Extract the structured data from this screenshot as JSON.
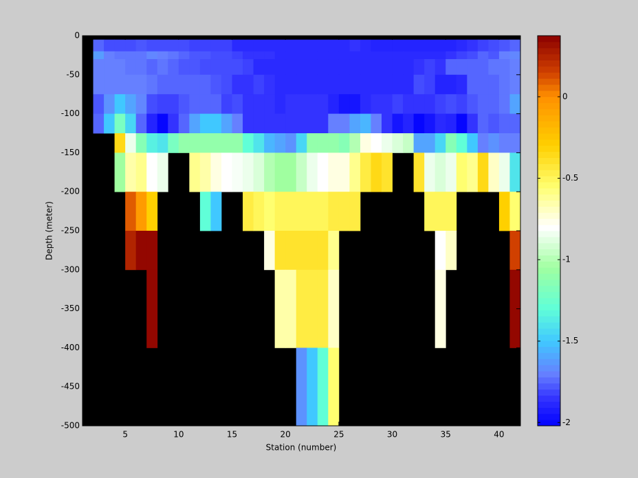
{
  "chart_data": {
    "type": "heatmap",
    "xlabel": "Station (number)",
    "ylabel": "Depth (meter)",
    "xbins": [
      2,
      3,
      4,
      5,
      6,
      7,
      8,
      9,
      10,
      11,
      12,
      13,
      14,
      15,
      16,
      17,
      18,
      19,
      20,
      21,
      22,
      23,
      24,
      25,
      26,
      27,
      28,
      29,
      30,
      31,
      32,
      33,
      34,
      35,
      36,
      37,
      38,
      39,
      40,
      41,
      42
    ],
    "ybins": [
      -5,
      -20,
      -30,
      -50,
      -75,
      -100,
      -125,
      -150,
      -200,
      -250,
      -300,
      -400,
      -500
    ],
    "z": [
      [
        -1.75,
        -1.8,
        -1.8,
        -1.8,
        -1.78,
        -1.8,
        -1.8,
        -1.8,
        -1.8,
        -1.82,
        -1.82,
        -1.82,
        -1.82,
        -1.88,
        -1.88,
        -1.88,
        -1.88,
        -1.88,
        -1.88,
        -1.88,
        -1.88,
        -1.88,
        -1.88,
        -1.88,
        -1.85,
        -1.88,
        -1.9,
        -1.9,
        -1.9,
        -1.9,
        -1.9,
        -1.9,
        -1.9,
        -1.9,
        -1.88,
        -1.85,
        -1.82,
        -1.8,
        -1.78,
        -1.75
      ],
      [
        -1.62,
        -1.7,
        -1.72,
        -1.72,
        -1.72,
        -1.68,
        -1.7,
        -1.72,
        -1.75,
        -1.78,
        -1.78,
        -1.8,
        -1.8,
        -1.82,
        -1.85,
        -1.85,
        -1.85,
        -1.88,
        -1.88,
        -1.88,
        -1.88,
        -1.88,
        -1.88,
        -1.88,
        -1.88,
        -1.88,
        -1.88,
        -1.88,
        -1.88,
        -1.88,
        -1.88,
        -1.88,
        -1.88,
        -1.85,
        -1.82,
        -1.8,
        -1.75,
        -1.78,
        -1.7,
        -1.68
      ],
      [
        -1.7,
        -1.7,
        -1.7,
        -1.72,
        -1.72,
        -1.75,
        -1.72,
        -1.75,
        -1.78,
        -1.78,
        -1.8,
        -1.8,
        -1.8,
        -1.8,
        -1.82,
        -1.88,
        -1.88,
        -1.88,
        -1.88,
        -1.88,
        -1.88,
        -1.88,
        -1.88,
        -1.88,
        -1.88,
        -1.88,
        -1.88,
        -1.88,
        -1.88,
        -1.88,
        -1.85,
        -1.82,
        -1.85,
        -1.75,
        -1.75,
        -1.75,
        -1.75,
        -1.72,
        -1.72,
        -1.7
      ],
      [
        -1.7,
        -1.7,
        -1.7,
        -1.7,
        -1.7,
        -1.72,
        -1.75,
        -1.75,
        -1.75,
        -1.75,
        -1.75,
        -1.78,
        -1.8,
        -1.85,
        -1.85,
        -1.82,
        -1.85,
        -1.88,
        -1.88,
        -1.88,
        -1.88,
        -1.88,
        -1.88,
        -1.88,
        -1.88,
        -1.88,
        -1.88,
        -1.88,
        -1.88,
        -1.88,
        -1.8,
        -1.82,
        -1.9,
        -1.9,
        -1.88,
        -1.75,
        -1.75,
        -1.75,
        -1.72,
        -1.7
      ],
      [
        -1.78,
        -1.65,
        -1.5,
        -1.6,
        -1.68,
        -1.8,
        -1.82,
        -1.82,
        -1.78,
        -1.75,
        -1.75,
        -1.75,
        -1.82,
        -1.8,
        -1.85,
        -1.85,
        -1.85,
        -1.88,
        -1.85,
        -1.85,
        -1.85,
        -1.85,
        -1.9,
        -1.95,
        -1.95,
        -1.88,
        -1.85,
        -1.85,
        -1.82,
        -1.85,
        -1.85,
        -1.85,
        -1.82,
        -1.8,
        -1.82,
        -1.78,
        -1.75,
        -1.75,
        -1.72,
        -1.6
      ],
      [
        -1.75,
        -1.5,
        -1.2,
        -1.45,
        -1.75,
        -1.9,
        -2,
        -1.85,
        -1.75,
        -1.6,
        -1.5,
        -1.5,
        -1.6,
        -1.7,
        -1.85,
        -1.85,
        -1.85,
        -1.85,
        -1.85,
        -1.85,
        -1.85,
        -1.85,
        -1.7,
        -1.7,
        -1.6,
        -1.55,
        -1.7,
        -1.85,
        -1.95,
        -1.9,
        -2,
        -1.95,
        -1.88,
        -1.9,
        -2,
        -1.85,
        -1.75,
        -1.78,
        -1.75,
        -1.75
      ],
      [
        null,
        null,
        -0.35,
        -0.85,
        -1.15,
        -1.35,
        -1.4,
        -1.2,
        -1.1,
        -1.1,
        -1.1,
        -1.1,
        -1.1,
        -1.1,
        -1.3,
        -1.4,
        -1.55,
        -1.6,
        -1.65,
        -1.45,
        -1.1,
        -1.1,
        -1.1,
        -1.15,
        -1.0,
        -0.75,
        -0.8,
        -0.85,
        -0.9,
        -0.95,
        -1.6,
        -1.6,
        -1.45,
        -1.15,
        -1.3,
        -1.5,
        -1.7,
        -1.65,
        -1.7,
        -1.7
      ],
      [
        null,
        null,
        -1.05,
        -0.65,
        -0.6,
        -0.8,
        -0.85,
        null,
        null,
        -0.6,
        -0.65,
        -0.75,
        -0.8,
        -0.82,
        -0.85,
        -0.9,
        -1.0,
        -1.05,
        -1.05,
        -0.95,
        -0.85,
        -0.8,
        -0.75,
        -0.75,
        -0.6,
        -0.45,
        -0.35,
        -0.4,
        null,
        null,
        -0.4,
        -0.85,
        -0.9,
        -0.85,
        -0.55,
        -0.6,
        -0.35,
        -0.7,
        -0.85,
        -1.4
      ],
      [
        null,
        null,
        null,
        0.1,
        -0.05,
        -0.3,
        null,
        null,
        null,
        null,
        -1.3,
        -1.5,
        null,
        null,
        -0.45,
        -0.5,
        -0.55,
        -0.5,
        -0.5,
        -0.5,
        -0.5,
        -0.5,
        -0.45,
        -0.45,
        -0.45,
        null,
        null,
        null,
        null,
        null,
        null,
        -0.5,
        -0.5,
        -0.5,
        null,
        null,
        null,
        null,
        -0.3,
        -0.55
      ],
      [
        null,
        null,
        null,
        0.25,
        0.35,
        0.35,
        null,
        null,
        null,
        null,
        null,
        null,
        null,
        null,
        null,
        null,
        -0.75,
        -0.4,
        -0.4,
        -0.4,
        -0.4,
        -0.4,
        -0.6,
        null,
        null,
        null,
        null,
        null,
        null,
        null,
        null,
        null,
        -0.8,
        -0.7,
        null,
        null,
        null,
        null,
        null,
        0.15
      ],
      [
        null,
        null,
        null,
        null,
        null,
        0.35,
        null,
        null,
        null,
        null,
        null,
        null,
        null,
        null,
        null,
        null,
        null,
        -0.65,
        -0.65,
        -0.45,
        -0.45,
        -0.45,
        -0.7,
        null,
        null,
        null,
        null,
        null,
        null,
        null,
        null,
        null,
        -0.75,
        null,
        null,
        null,
        null,
        null,
        null,
        0.35
      ],
      [
        null,
        null,
        null,
        null,
        null,
        null,
        null,
        null,
        null,
        null,
        null,
        null,
        null,
        null,
        null,
        null,
        null,
        null,
        null,
        -1.65,
        -1.5,
        -1.3,
        -0.55,
        null,
        null,
        null,
        null,
        null,
        null,
        null,
        null,
        null,
        null,
        null,
        null,
        null,
        null,
        null,
        null,
        null
      ]
    ],
    "xlim": [
      1,
      42
    ],
    "ylim": [
      -500,
      0
    ],
    "xticks": [
      5,
      10,
      15,
      20,
      25,
      30,
      35,
      40
    ],
    "yticks": [
      0,
      -50,
      -100,
      -150,
      -200,
      -250,
      -300,
      -350,
      -400,
      -450,
      -500
    ],
    "background_color": "#000000",
    "clim": [
      -2.02,
      0.375
    ],
    "cticks": [
      -2,
      -1.5,
      -1,
      -0.5,
      0
    ],
    "colorscale": [
      [
        -2.02,
        "#0000ff"
      ],
      [
        -1.85,
        "#3333ff"
      ],
      [
        -1.7,
        "#6680ff"
      ],
      [
        -1.5,
        "#40c8ff"
      ],
      [
        -1.3,
        "#60ffd8"
      ],
      [
        -1.05,
        "#a0ffa0"
      ],
      [
        -0.8,
        "#ffffff"
      ],
      [
        -0.55,
        "#ffff70"
      ],
      [
        -0.3,
        "#ffd000"
      ],
      [
        0,
        "#ff9000"
      ],
      [
        0.15,
        "#d04000"
      ],
      [
        0.375,
        "#8b0000"
      ]
    ]
  }
}
